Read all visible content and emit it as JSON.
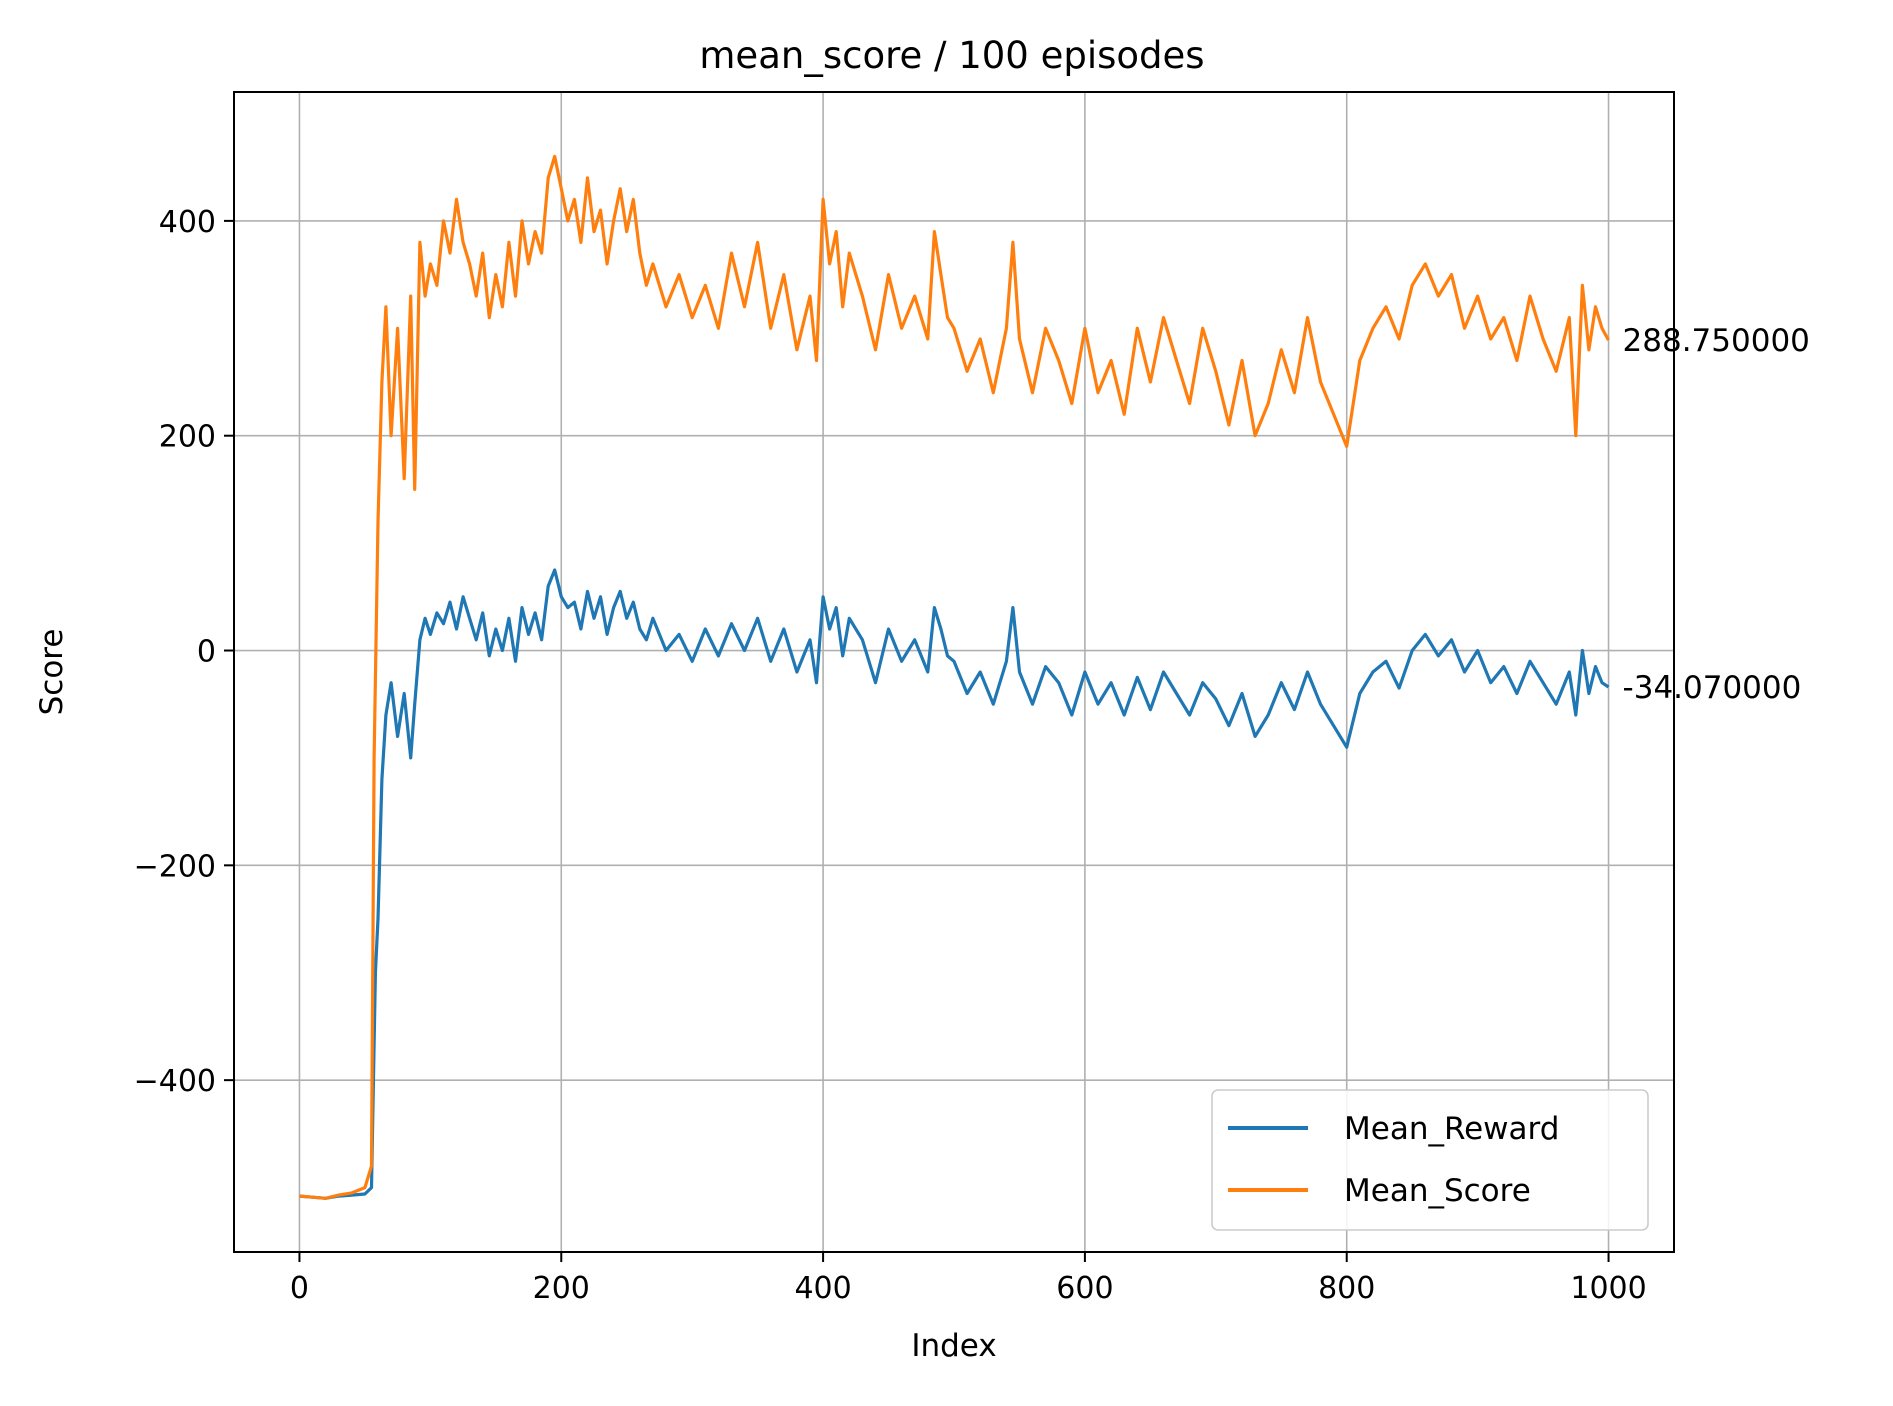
{
  "chart_data": {
    "type": "line",
    "title": "mean_score / 100 episodes",
    "xlabel": "Index",
    "ylabel": "Score",
    "xlim": [
      -50,
      1050
    ],
    "ylim": [
      -560,
      520
    ],
    "xticks": [
      0,
      200,
      400,
      600,
      800,
      1000
    ],
    "yticks": [
      -400,
      -200,
      0,
      200,
      400
    ],
    "ytick_labels": [
      "−400",
      "−200",
      "0",
      "200",
      "400"
    ],
    "grid": true,
    "legend_position": "lower-right",
    "series": [
      {
        "name": "Mean_Reward",
        "color": "#1f77b4",
        "end_label": "-34.070000",
        "points": [
          [
            0,
            -508
          ],
          [
            10,
            -509
          ],
          [
            20,
            -510
          ],
          [
            30,
            -508
          ],
          [
            40,
            -507
          ],
          [
            50,
            -506
          ],
          [
            55,
            -500
          ],
          [
            58,
            -300
          ],
          [
            60,
            -250
          ],
          [
            63,
            -120
          ],
          [
            66,
            -60
          ],
          [
            70,
            -30
          ],
          [
            75,
            -80
          ],
          [
            80,
            -40
          ],
          [
            85,
            -100
          ],
          [
            88,
            -50
          ],
          [
            92,
            10
          ],
          [
            96,
            30
          ],
          [
            100,
            15
          ],
          [
            105,
            35
          ],
          [
            110,
            25
          ],
          [
            115,
            45
          ],
          [
            120,
            20
          ],
          [
            125,
            50
          ],
          [
            130,
            30
          ],
          [
            135,
            10
          ],
          [
            140,
            35
          ],
          [
            145,
            -5
          ],
          [
            150,
            20
          ],
          [
            155,
            0
          ],
          [
            160,
            30
          ],
          [
            165,
            -10
          ],
          [
            170,
            40
          ],
          [
            175,
            15
          ],
          [
            180,
            35
          ],
          [
            185,
            10
          ],
          [
            190,
            60
          ],
          [
            195,
            75
          ],
          [
            200,
            50
          ],
          [
            205,
            40
          ],
          [
            210,
            45
          ],
          [
            215,
            20
          ],
          [
            220,
            55
          ],
          [
            225,
            30
          ],
          [
            230,
            50
          ],
          [
            235,
            15
          ],
          [
            240,
            40
          ],
          [
            245,
            55
          ],
          [
            250,
            30
          ],
          [
            255,
            45
          ],
          [
            260,
            20
          ],
          [
            265,
            10
          ],
          [
            270,
            30
          ],
          [
            280,
            0
          ],
          [
            290,
            15
          ],
          [
            300,
            -10
          ],
          [
            310,
            20
          ],
          [
            320,
            -5
          ],
          [
            330,
            25
          ],
          [
            340,
            0
          ],
          [
            350,
            30
          ],
          [
            360,
            -10
          ],
          [
            370,
            20
          ],
          [
            380,
            -20
          ],
          [
            390,
            10
          ],
          [
            395,
            -30
          ],
          [
            400,
            50
          ],
          [
            405,
            20
          ],
          [
            410,
            40
          ],
          [
            415,
            -5
          ],
          [
            420,
            30
          ],
          [
            430,
            10
          ],
          [
            440,
            -30
          ],
          [
            450,
            20
          ],
          [
            460,
            -10
          ],
          [
            470,
            10
          ],
          [
            480,
            -20
          ],
          [
            485,
            40
          ],
          [
            490,
            20
          ],
          [
            495,
            -5
          ],
          [
            500,
            -10
          ],
          [
            510,
            -40
          ],
          [
            520,
            -20
          ],
          [
            530,
            -50
          ],
          [
            540,
            -10
          ],
          [
            545,
            40
          ],
          [
            550,
            -20
          ],
          [
            560,
            -50
          ],
          [
            570,
            -15
          ],
          [
            580,
            -30
          ],
          [
            590,
            -60
          ],
          [
            600,
            -20
          ],
          [
            610,
            -50
          ],
          [
            620,
            -30
          ],
          [
            630,
            -60
          ],
          [
            640,
            -25
          ],
          [
            650,
            -55
          ],
          [
            660,
            -20
          ],
          [
            670,
            -40
          ],
          [
            680,
            -60
          ],
          [
            690,
            -30
          ],
          [
            700,
            -45
          ],
          [
            710,
            -70
          ],
          [
            720,
            -40
          ],
          [
            730,
            -80
          ],
          [
            740,
            -60
          ],
          [
            750,
            -30
          ],
          [
            760,
            -55
          ],
          [
            770,
            -20
          ],
          [
            780,
            -50
          ],
          [
            790,
            -70
          ],
          [
            800,
            -90
          ],
          [
            810,
            -40
          ],
          [
            820,
            -20
          ],
          [
            830,
            -10
          ],
          [
            840,
            -35
          ],
          [
            850,
            0
          ],
          [
            860,
            15
          ],
          [
            870,
            -5
          ],
          [
            880,
            10
          ],
          [
            890,
            -20
          ],
          [
            900,
            0
          ],
          [
            910,
            -30
          ],
          [
            920,
            -15
          ],
          [
            930,
            -40
          ],
          [
            940,
            -10
          ],
          [
            950,
            -30
          ],
          [
            960,
            -50
          ],
          [
            970,
            -20
          ],
          [
            975,
            -60
          ],
          [
            980,
            0
          ],
          [
            985,
            -40
          ],
          [
            990,
            -15
          ],
          [
            995,
            -30
          ],
          [
            1000,
            -34
          ]
        ]
      },
      {
        "name": "Mean_Score",
        "color": "#ff7f0e",
        "end_label": "288.750000",
        "points": [
          [
            0,
            -508
          ],
          [
            10,
            -509
          ],
          [
            20,
            -510
          ],
          [
            30,
            -507
          ],
          [
            40,
            -505
          ],
          [
            50,
            -500
          ],
          [
            55,
            -480
          ],
          [
            57,
            -100
          ],
          [
            60,
            120
          ],
          [
            63,
            250
          ],
          [
            66,
            320
          ],
          [
            70,
            200
          ],
          [
            75,
            300
          ],
          [
            80,
            160
          ],
          [
            85,
            330
          ],
          [
            88,
            150
          ],
          [
            92,
            380
          ],
          [
            96,
            330
          ],
          [
            100,
            360
          ],
          [
            105,
            340
          ],
          [
            110,
            400
          ],
          [
            115,
            370
          ],
          [
            120,
            420
          ],
          [
            125,
            380
          ],
          [
            130,
            360
          ],
          [
            135,
            330
          ],
          [
            140,
            370
          ],
          [
            145,
            310
          ],
          [
            150,
            350
          ],
          [
            155,
            320
          ],
          [
            160,
            380
          ],
          [
            165,
            330
          ],
          [
            170,
            400
          ],
          [
            175,
            360
          ],
          [
            180,
            390
          ],
          [
            185,
            370
          ],
          [
            190,
            440
          ],
          [
            195,
            460
          ],
          [
            200,
            430
          ],
          [
            205,
            400
          ],
          [
            210,
            420
          ],
          [
            215,
            380
          ],
          [
            220,
            440
          ],
          [
            225,
            390
          ],
          [
            230,
            410
          ],
          [
            235,
            360
          ],
          [
            240,
            400
          ],
          [
            245,
            430
          ],
          [
            250,
            390
          ],
          [
            255,
            420
          ],
          [
            260,
            370
          ],
          [
            265,
            340
          ],
          [
            270,
            360
          ],
          [
            280,
            320
          ],
          [
            290,
            350
          ],
          [
            300,
            310
          ],
          [
            310,
            340
          ],
          [
            320,
            300
          ],
          [
            330,
            370
          ],
          [
            340,
            320
          ],
          [
            350,
            380
          ],
          [
            360,
            300
          ],
          [
            370,
            350
          ],
          [
            380,
            280
          ],
          [
            390,
            330
          ],
          [
            395,
            270
          ],
          [
            400,
            420
          ],
          [
            405,
            360
          ],
          [
            410,
            390
          ],
          [
            415,
            320
          ],
          [
            420,
            370
          ],
          [
            430,
            330
          ],
          [
            440,
            280
          ],
          [
            450,
            350
          ],
          [
            460,
            300
          ],
          [
            470,
            330
          ],
          [
            480,
            290
          ],
          [
            485,
            390
          ],
          [
            490,
            350
          ],
          [
            495,
            310
          ],
          [
            500,
            300
          ],
          [
            510,
            260
          ],
          [
            520,
            290
          ],
          [
            530,
            240
          ],
          [
            540,
            300
          ],
          [
            545,
            380
          ],
          [
            550,
            290
          ],
          [
            560,
            240
          ],
          [
            570,
            300
          ],
          [
            580,
            270
          ],
          [
            590,
            230
          ],
          [
            600,
            300
          ],
          [
            610,
            240
          ],
          [
            620,
            270
          ],
          [
            630,
            220
          ],
          [
            640,
            300
          ],
          [
            650,
            250
          ],
          [
            660,
            310
          ],
          [
            670,
            270
          ],
          [
            680,
            230
          ],
          [
            690,
            300
          ],
          [
            700,
            260
          ],
          [
            710,
            210
          ],
          [
            720,
            270
          ],
          [
            730,
            200
          ],
          [
            740,
            230
          ],
          [
            750,
            280
          ],
          [
            760,
            240
          ],
          [
            770,
            310
          ],
          [
            780,
            250
          ],
          [
            790,
            220
          ],
          [
            800,
            190
          ],
          [
            810,
            270
          ],
          [
            820,
            300
          ],
          [
            830,
            320
          ],
          [
            840,
            290
          ],
          [
            850,
            340
          ],
          [
            860,
            360
          ],
          [
            870,
            330
          ],
          [
            880,
            350
          ],
          [
            890,
            300
          ],
          [
            900,
            330
          ],
          [
            910,
            290
          ],
          [
            920,
            310
          ],
          [
            930,
            270
          ],
          [
            940,
            330
          ],
          [
            950,
            290
          ],
          [
            960,
            260
          ],
          [
            970,
            310
          ],
          [
            975,
            200
          ],
          [
            980,
            340
          ],
          [
            985,
            280
          ],
          [
            990,
            320
          ],
          [
            995,
            300
          ],
          [
            1000,
            289
          ]
        ]
      }
    ]
  }
}
